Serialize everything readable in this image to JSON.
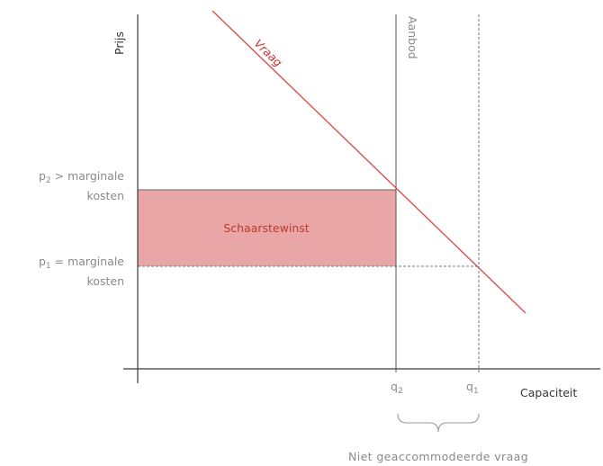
{
  "axes": {
    "y_label": "Prijs",
    "x_label": "Capaciteit"
  },
  "lines": {
    "demand": "Vraag",
    "supply": "Aanbod"
  },
  "price_levels": {
    "p2": {
      "base": "p",
      "sub": "2",
      "rest": " > marginale",
      "line2": "kosten"
    },
    "p1": {
      "base": "p",
      "sub": "1",
      "rest": " = marginale",
      "line2": "kosten"
    }
  },
  "quantities": {
    "q2": {
      "base": "q",
      "sub": "2"
    },
    "q1": {
      "base": "q",
      "sub": "1"
    }
  },
  "areas": {
    "scarcity": "Schaarstewinst"
  },
  "annotations": {
    "unaccommodated": "Niet geaccommodeerde vraag"
  },
  "colors": {
    "axis": "#3a3a3a",
    "demand_line": "#d9534f",
    "demand_label": "#c9302c",
    "scarcity_fill": "#e8a6a6",
    "scarcity_text": "#c0392b",
    "supply_line": "#555555",
    "guide_line": "#777777",
    "muted_text": "#8a8a8a",
    "brace": "#9a9a9a"
  }
}
